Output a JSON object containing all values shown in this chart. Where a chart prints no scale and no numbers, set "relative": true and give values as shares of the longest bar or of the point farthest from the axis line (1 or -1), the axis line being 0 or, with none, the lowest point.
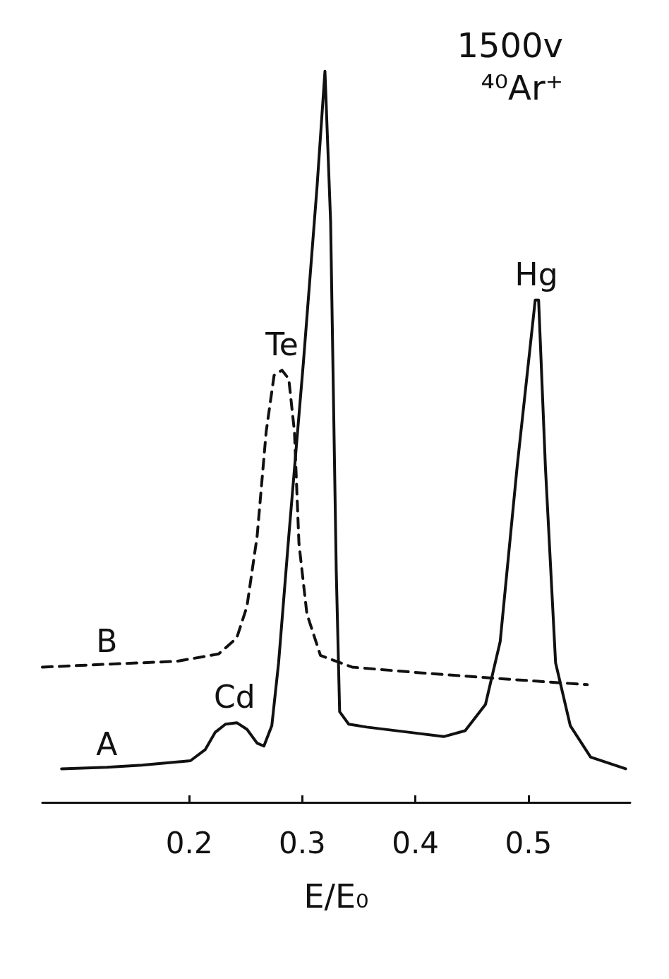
{
  "chart_data": {
    "type": "line",
    "relative": true,
    "xlabel": "E/E₀",
    "xlim": [
      0.07,
      0.59
    ],
    "xticks": [
      0.2,
      0.3,
      0.4,
      0.5
    ],
    "legend": false,
    "grid": false,
    "marker": "none",
    "annotations": [
      "1500v",
      "⁴⁰Ar⁺",
      {
        "text": "Cd",
        "x": 0.24,
        "y": 0.109
      },
      {
        "text": "Te",
        "x": 0.282,
        "y": 0.591
      },
      {
        "text": "Hg",
        "x": 0.507,
        "y": 0.687
      }
    ],
    "series": [
      {
        "name": "A",
        "color": "#111111",
        "line_style": "solid",
        "x": [
          0.087,
          0.127,
          0.158,
          0.201,
          0.214,
          0.223,
          0.232,
          0.242,
          0.251,
          0.26,
          0.266,
          0.273,
          0.279,
          0.288,
          0.301,
          0.313,
          0.32,
          0.325,
          0.33,
          0.333,
          0.341,
          0.357,
          0.394,
          0.425,
          0.444,
          0.462,
          0.475,
          0.49,
          0.506,
          0.509,
          0.515,
          0.524,
          0.537,
          0.555,
          0.586
        ],
        "values": [
          0.046,
          0.048,
          0.051,
          0.057,
          0.072,
          0.096,
          0.107,
          0.109,
          0.1,
          0.081,
          0.077,
          0.105,
          0.191,
          0.364,
          0.603,
          0.842,
          1.0,
          0.794,
          0.316,
          0.124,
          0.107,
          0.103,
          0.096,
          0.09,
          0.098,
          0.134,
          0.22,
          0.459,
          0.687,
          0.687,
          0.459,
          0.191,
          0.105,
          0.062,
          0.046
        ]
      },
      {
        "name": "B",
        "color": "#111111",
        "line_style": "dashed",
        "x": [
          0.07,
          0.127,
          0.189,
          0.226,
          0.242,
          0.251,
          0.26,
          0.268,
          0.275,
          0.282,
          0.288,
          0.293,
          0.297,
          0.304,
          0.316,
          0.344,
          0.406,
          0.468,
          0.552
        ],
        "values": [
          0.185,
          0.189,
          0.193,
          0.203,
          0.225,
          0.268,
          0.364,
          0.507,
          0.584,
          0.591,
          0.579,
          0.507,
          0.354,
          0.258,
          0.201,
          0.185,
          0.177,
          0.17,
          0.161
        ]
      }
    ]
  }
}
